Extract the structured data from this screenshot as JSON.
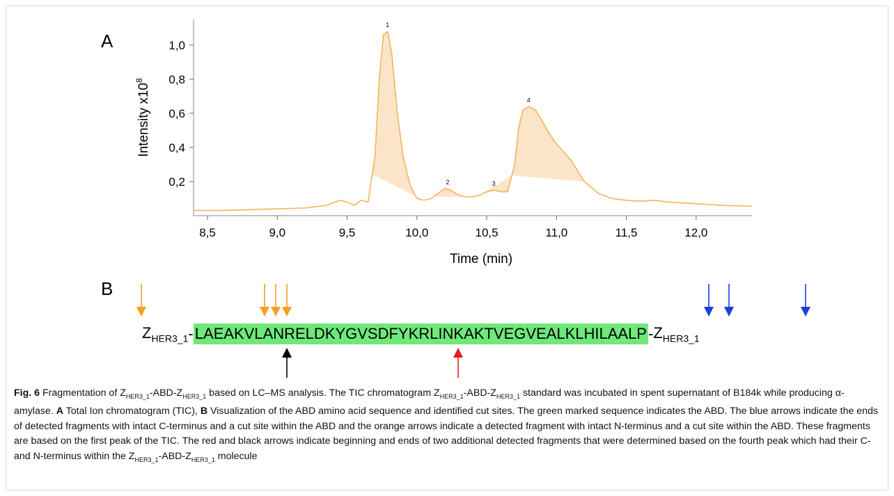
{
  "panels": {
    "a": "A",
    "b": "B"
  },
  "chart_data": {
    "type": "area",
    "xlabel": "Time (min)",
    "ylabel": "Intensity x10",
    "ylabel_sup": "8",
    "xlim": [
      8.4,
      12.4
    ],
    "ylim": [
      0.0,
      1.15
    ],
    "xticks": [
      "8,5",
      "9,0",
      "9,5",
      "10,0",
      "10,5",
      "11,0",
      "11,5",
      "12,0"
    ],
    "xtick_values": [
      8.5,
      9.0,
      9.5,
      10.0,
      10.5,
      11.0,
      11.5,
      12.0
    ],
    "yticks": [
      "0,2",
      "0,4",
      "0,6",
      "0,8",
      "1,0"
    ],
    "ytick_values": [
      0.2,
      0.4,
      0.6,
      0.8,
      1.0
    ],
    "line_color": "#f5b45a",
    "fill_color": "#fbe4c8",
    "series": [
      {
        "x": [
          8.4,
          8.6,
          8.8,
          9.0,
          9.2,
          9.35,
          9.45,
          9.5,
          9.55,
          9.6,
          9.65,
          9.7,
          9.73,
          9.76,
          9.79,
          9.82,
          9.86,
          9.9,
          9.95,
          10.0,
          10.05,
          10.1,
          10.15,
          10.2,
          10.24,
          10.3,
          10.35,
          10.4,
          10.45,
          10.5,
          10.55,
          10.6,
          10.65,
          10.7,
          10.73,
          10.76,
          10.8,
          10.85,
          10.9,
          10.95,
          11.0,
          11.1,
          11.2,
          11.3,
          11.4,
          11.5,
          11.6,
          11.7,
          11.8,
          12.0,
          12.2,
          12.4
        ],
        "y": [
          0.03,
          0.03,
          0.035,
          0.04,
          0.045,
          0.06,
          0.09,
          0.08,
          0.06,
          0.09,
          0.08,
          0.35,
          0.8,
          1.06,
          1.08,
          0.95,
          0.6,
          0.35,
          0.18,
          0.1,
          0.09,
          0.1,
          0.13,
          0.16,
          0.15,
          0.12,
          0.11,
          0.11,
          0.12,
          0.14,
          0.15,
          0.14,
          0.14,
          0.3,
          0.52,
          0.62,
          0.64,
          0.62,
          0.55,
          0.48,
          0.42,
          0.33,
          0.2,
          0.13,
          0.1,
          0.09,
          0.085,
          0.09,
          0.08,
          0.07,
          0.06,
          0.055
        ]
      }
    ],
    "peaks": [
      {
        "label": "1",
        "x": 9.79,
        "y": 1.08,
        "fill_from": 9.68,
        "fill_to": 10.05
      },
      {
        "label": "2",
        "x": 10.22,
        "y": 0.16,
        "fill_from": 10.12,
        "fill_to": 10.35
      },
      {
        "label": "3",
        "x": 10.55,
        "y": 0.15,
        "fill_from": 10.45,
        "fill_to": 10.68
      },
      {
        "label": "4",
        "x": 10.8,
        "y": 0.64,
        "fill_from": 10.68,
        "fill_to": 11.2
      }
    ]
  },
  "sequence": {
    "z_main": "Z",
    "z_sub": "HER3_1",
    "dash_left": "-",
    "abd": "LAEAKVLANRELDKYGVSDFYKRLINKAKTVEGVEALKLHILAALP",
    "dash_right": "-"
  },
  "arrow_colors": {
    "orange": "#f5a020",
    "blue": "#1a3fe0",
    "black": "#000000",
    "red": "#e02020"
  },
  "caption": {
    "fig": "Fig. 6",
    "p1": "  Fragmentation of Z",
    "s1": "HER3_1",
    "p2": "-ABD-Z",
    "s2": "HER3_1",
    "p3": " based on LC–MS analysis. The TIC chromatogram Z",
    "s3": "HER3_1",
    "p4": "-ABD-Z",
    "s4": "HER3_1",
    "p5": " standard was incubated in spent supernatant of B184k while producing α-amylase. ",
    "a_label": "A",
    "p6": " Total Ion chromatogram (TIC), ",
    "b_label": "B",
    "p7": " Visualization of the ABD amino acid sequence and identified cut sites. The green marked sequence indicates the ABD. The blue arrows indicate the ends of detected fragments with intact C-terminus and a cut site within the ABD and the orange arrows indicate a detected fragment with intact N-terminus and a cut site within the ABD. These fragments are based on the first peak of the TIC. The red and black arrows indicate beginning and ends of two additional detected fragments that were determined based on the fourth peak which had their C- and N-terminus within the Z",
    "s5": "HER3_1",
    "p8": "-ABD-Z",
    "s6": "HER3_1",
    "p9": " molecule"
  }
}
